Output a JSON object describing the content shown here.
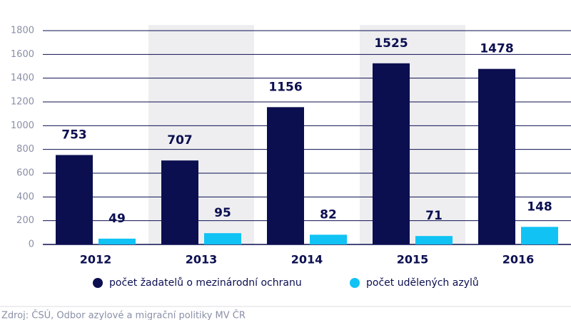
{
  "chart_data": {
    "type": "bar",
    "categories": [
      "2012",
      "2013",
      "2014",
      "2015",
      "2016"
    ],
    "series": [
      {
        "name": "počet žadatelů o mezinárodní ochranu",
        "color": "#0b0f50",
        "values": [
          753,
          707,
          1156,
          1525,
          1478
        ]
      },
      {
        "name": "počet udělených azylů",
        "color": "#10c3f4",
        "values": [
          49,
          95,
          82,
          71,
          148
        ]
      }
    ],
    "ylim": [
      0,
      1800
    ],
    "yticks": [
      0,
      200,
      400,
      600,
      800,
      1000,
      1200,
      1400,
      1600,
      1800
    ],
    "grid": true,
    "source": "Zdroj: ČSÚ, Odbor azylové a migrační politiky MV ČR"
  }
}
